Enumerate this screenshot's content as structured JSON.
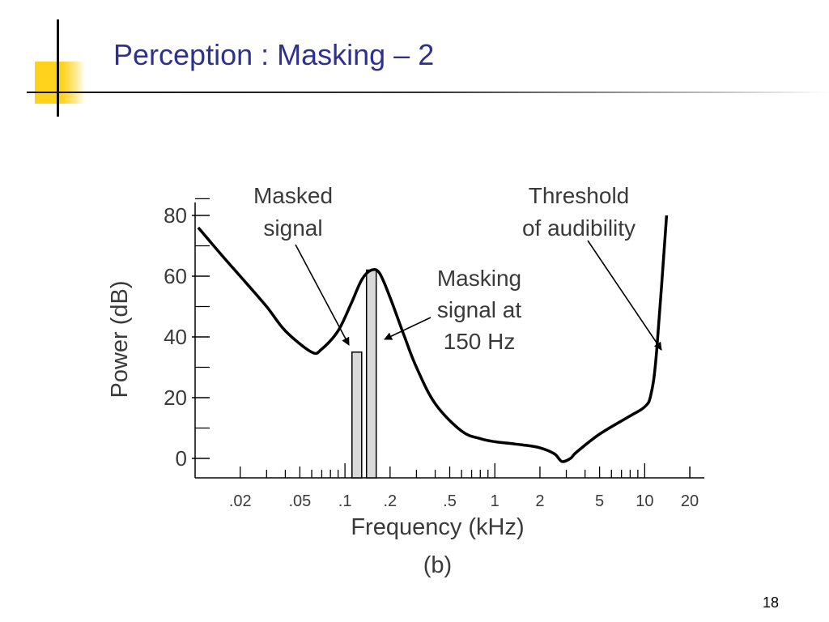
{
  "slide": {
    "title": "Perception : Masking – 2",
    "page_number": "18"
  },
  "colors": {
    "title": "#2e3192",
    "accent": "#ffd31c",
    "bar_fill": "#d9d9d9",
    "curve": "#000000"
  },
  "chart_data": {
    "type": "line",
    "xlabel": "Frequency (kHz)",
    "ylabel": "Power (dB)",
    "caption": "(b)",
    "x_scale": "log",
    "xlim": [
      0.01,
      25
    ],
    "ylim": [
      -3,
      80
    ],
    "x_ticks": [
      0.02,
      0.05,
      0.1,
      0.2,
      0.5,
      1,
      2,
      5,
      10,
      20
    ],
    "x_tick_labels": [
      ".02",
      ".05",
      ".1",
      ".2",
      ".5",
      "1",
      "2",
      "5",
      "10",
      "20"
    ],
    "y_ticks": [
      0,
      20,
      40,
      60,
      80
    ],
    "y_tick_labels": [
      "0",
      "20",
      "40",
      "60",
      "80"
    ],
    "series": [
      {
        "x": [
          0.0105,
          0.015,
          0.02,
          0.03,
          0.04,
          0.06,
          0.07,
          0.09,
          0.11,
          0.13,
          0.15,
          0.17,
          0.2,
          0.25,
          0.3,
          0.4,
          0.6,
          0.8,
          1,
          1.5,
          2,
          2.5,
          2.8,
          3.2,
          3.5,
          5,
          8,
          10,
          11,
          12,
          14
        ],
        "y": [
          76,
          67,
          60,
          50,
          42,
          35,
          36,
          42,
          51,
          59,
          62,
          61,
          53,
          40,
          30,
          18,
          9,
          6.5,
          5.5,
          4.5,
          3.5,
          1.5,
          -1,
          0,
          2,
          8,
          14,
          17,
          21,
          35,
          80
        ]
      }
    ],
    "bars": [
      {
        "x": 0.12,
        "value": 35
      },
      {
        "x": 0.15,
        "value": 62
      }
    ],
    "annotations": [
      {
        "lines": [
          "Masked",
          "signal"
        ],
        "points_to_x": 0.12,
        "points_to_y": 35
      },
      {
        "lines": [
          "Masking",
          "signal at",
          "150 Hz"
        ],
        "points_to_x": 0.15,
        "points_to_y": 40
      },
      {
        "lines": [
          "Threshold",
          "of audibility"
        ],
        "points_to_x": 12,
        "points_to_y": 37
      }
    ]
  }
}
